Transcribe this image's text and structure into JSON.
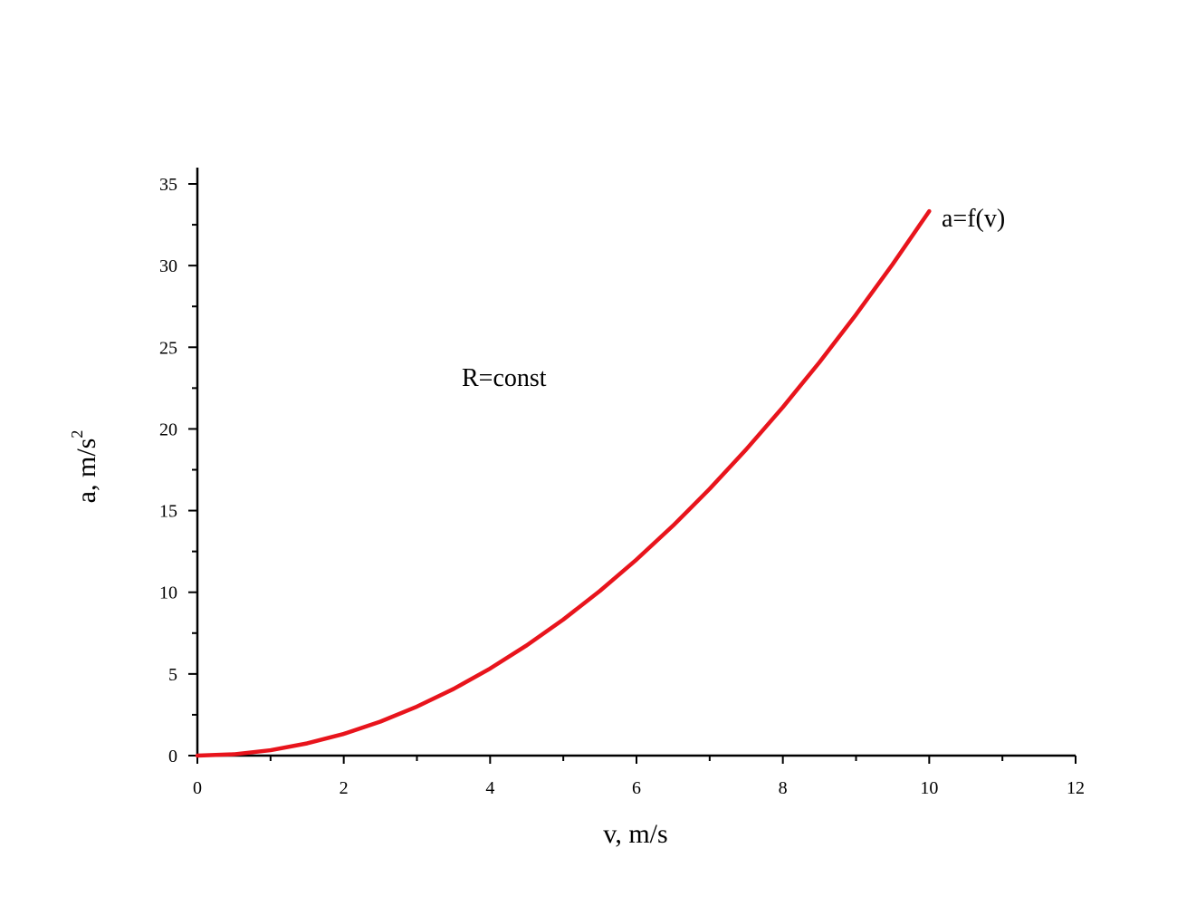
{
  "chart_data": {
    "type": "line",
    "title": "",
    "xlabel": "v, m/s",
    "ylabel": "a, m/s",
    "ylabel_superscript": "2",
    "xlim": [
      0,
      12
    ],
    "ylim": [
      0,
      35
    ],
    "x_ticks": [
      "0",
      "2",
      "4",
      "6",
      "8",
      "10",
      "12"
    ],
    "y_ticks": [
      "0",
      "5",
      "10",
      "15",
      "20",
      "25",
      "30",
      "35"
    ],
    "grid": false,
    "series": [
      {
        "name": "a=f(v)",
        "color": "#e8141c",
        "x": [
          0,
          0.5,
          1,
          1.5,
          2,
          2.5,
          3,
          3.5,
          4,
          4.5,
          5,
          5.5,
          6,
          6.5,
          7,
          7.5,
          8,
          8.5,
          9,
          9.5,
          10
        ],
        "y": [
          0,
          0.08,
          0.33,
          0.75,
          1.33,
          2.08,
          3.0,
          4.08,
          5.33,
          6.75,
          8.33,
          10.08,
          12.0,
          14.08,
          16.33,
          18.75,
          21.33,
          24.08,
          27.0,
          30.08,
          33.33
        ]
      }
    ],
    "annotations": [
      {
        "text": "R=const"
      }
    ]
  }
}
